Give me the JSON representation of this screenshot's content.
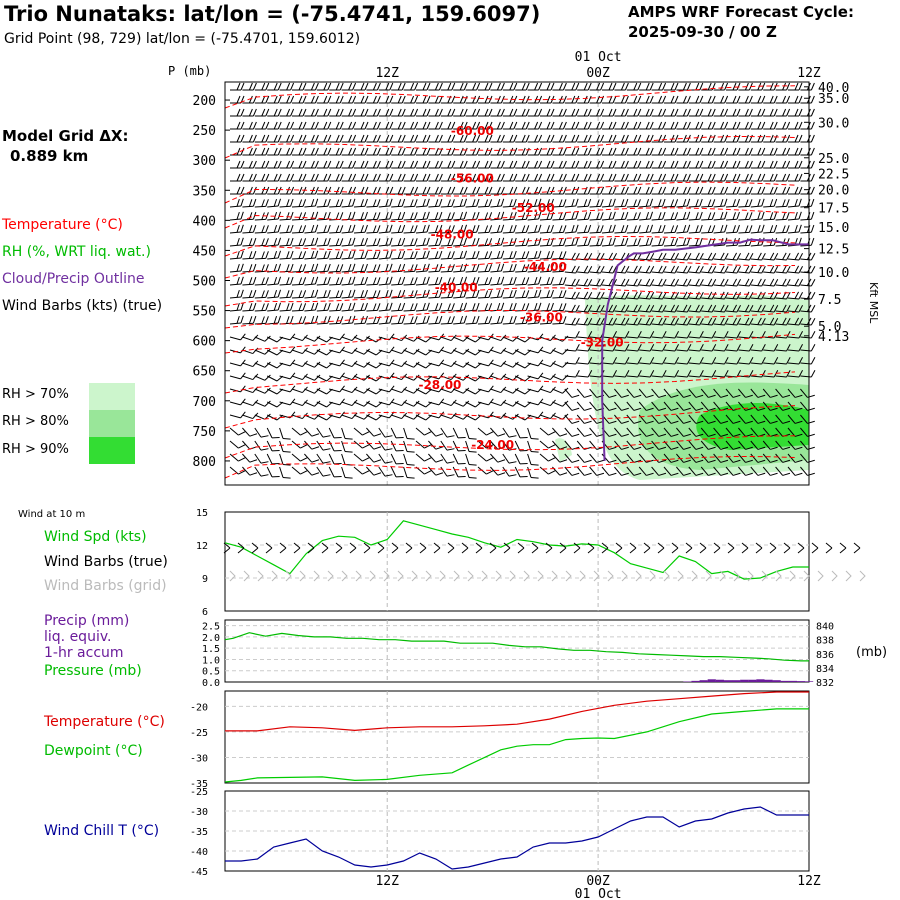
{
  "header": {
    "title": "Trio Nunataks:  lat/lon = (-75.4741, 159.6097)",
    "subtitle": "Grid Point (98, 729) lat/lon = (-75.4701, 159.6012)",
    "cycle_line1": "AMPS WRF Forecast Cycle:",
    "cycle_line2": "2025-09-30 / 00  Z",
    "model_dx_label": "Model Grid ΔX:",
    "model_dx_value": "0.889 km"
  },
  "colors": {
    "temperature": "#ff0000",
    "rh": "#00cc00",
    "cloud": "#7030a0",
    "wind": "#000000",
    "wind_grid": "#bbbbbb",
    "precip": "#6a1b9a",
    "pressure": "#00bb00",
    "windchill": "#000099",
    "rh70": "#ccf5cc",
    "rh80": "#99e699",
    "rh90": "#33dd33"
  },
  "legend": {
    "temperature": "Temperature (°C)",
    "rh": "RH (%, WRT liq. wat.)",
    "cloud": "Cloud/Precip Outline",
    "wind": "Wind Barbs (kts) (true)",
    "rh70": "RH > 70%",
    "rh80": "RH > 80%",
    "rh90": "RH > 90%",
    "wind10_title": "Wind at 10 m",
    "wind_spd": "Wind Spd (kts)",
    "wind_true": "Wind Barbs (true)",
    "wind_grid": "Wind Barbs (grid)",
    "precip1": "Precip (mm)",
    "precip2": "liq. equiv.",
    "precip3": "1-hr accum",
    "pressure": "Pressure (mb)",
    "temp2": "Temperature (°C)",
    "dewpoint": "Dewpoint (°C)",
    "windchill": "Wind Chill T (°C)",
    "mb_unit": "(mb)",
    "kft_msl": "Kft MSL"
  },
  "chart_data": [
    {
      "type": "line",
      "panel": "vertical-profile",
      "x_top_labels": [
        "12Z",
        "00Z",
        "12Z"
      ],
      "date_label": "01 Oct",
      "yaxis_title": "P (mb)",
      "ylim": [
        170,
        840
      ],
      "pressure_ticks": [
        200,
        250,
        300,
        350,
        400,
        450,
        500,
        550,
        600,
        650,
        700,
        750,
        800
      ],
      "height_ticks": [
        "40.0",
        "35.0",
        "30.0",
        "25.0",
        "22.5",
        "20.0",
        "17.5",
        "15.0",
        "12.5",
        "10.0",
        "7.5",
        "5.0",
        "4.13"
      ],
      "height_tick_pressures": [
        178,
        197,
        237,
        296,
        322,
        349,
        379,
        411,
        447,
        486,
        531,
        576,
        592
      ],
      "temperature_contour_labels": [
        {
          "text": "-60.00",
          "hour": 30.5,
          "p": 258
        },
        {
          "text": "-56.00",
          "hour": 30.5,
          "p": 337
        },
        {
          "text": "-52.00",
          "hour": 38.0,
          "p": 386
        },
        {
          "text": "-48.00",
          "hour": 28.0,
          "p": 430
        },
        {
          "text": "-44.00",
          "hour": 39.5,
          "p": 484
        },
        {
          "text": "-40.00",
          "hour": 28.5,
          "p": 518
        },
        {
          "text": "-36.00",
          "hour": 39.0,
          "p": 568
        },
        {
          "text": "-32.00",
          "hour": 46.5,
          "p": 610
        },
        {
          "text": "-28.00",
          "hour": 26.5,
          "p": 680
        },
        {
          "text": "-24.00",
          "hour": 33.0,
          "p": 780
        }
      ],
      "cloud_outline": {
        "hour": [
          46.8,
          46.5,
          46.5,
          47.2,
          48.4,
          49.8,
          50.4,
          51.5,
          52.8,
          54.0,
          55.5,
          58.0,
          60.0,
          62.0,
          63.5,
          64.8,
          66.0,
          67.5,
          69.5,
          71.0,
          72.0
        ],
        "p": [
          800,
          700,
          600,
          540,
          475,
          460,
          455,
          455,
          452,
          449,
          449,
          445,
          441,
          437,
          437,
          432,
          433,
          433,
          440,
          440,
          440
        ]
      }
    },
    {
      "type": "line",
      "panel": "wind-10m",
      "ylim": [
        6,
        15
      ],
      "yticks": [
        6,
        9,
        12,
        15
      ],
      "series": [
        {
          "name": "Wind Spd (kts)",
          "hours": [
            0,
            2,
            4,
            6,
            8,
            10,
            12,
            14,
            16,
            18,
            20,
            22,
            24,
            26,
            28,
            30,
            32,
            34,
            36,
            38,
            40,
            42,
            44,
            46,
            48,
            50,
            52,
            54,
            56,
            58,
            60,
            62,
            64,
            66,
            68,
            70,
            72
          ],
          "values": [
            12.2,
            11.8,
            11.0,
            10.2,
            9.4,
            11.2,
            12.4,
            12.8,
            12.7,
            12.0,
            12.5,
            14.2,
            13.8,
            13.4,
            13.0,
            12.7,
            12.2,
            11.8,
            12.5,
            12.3,
            12.0,
            11.9,
            12.1,
            12.0,
            11.3,
            10.3,
            9.9,
            9.5,
            11.0,
            10.5,
            9.4,
            9.6,
            8.9,
            9.0,
            9.6,
            10.0,
            10.0
          ]
        }
      ]
    },
    {
      "type": "line",
      "panel": "precip-pressure",
      "precip_yticks": [
        "0.0",
        "0.5",
        "1.0",
        "1.5",
        "2.0",
        "2.5"
      ],
      "pressure_yticks": [
        832,
        834,
        836,
        838,
        840
      ],
      "pressure_ylim": [
        832,
        840.8
      ],
      "precip_ylim": [
        0,
        2.75
      ],
      "series": [
        {
          "name": "Pressure (mb)",
          "hours": [
            0,
            1,
            3,
            5,
            7,
            9,
            11,
            13,
            15,
            17,
            19,
            21,
            23,
            25,
            27,
            29,
            31,
            33,
            35,
            37,
            39,
            41,
            43,
            45,
            47,
            49,
            51,
            53,
            55,
            57,
            59,
            61,
            63,
            65,
            67,
            69,
            71,
            72
          ],
          "values": [
            838.0,
            838.2,
            839.0,
            838.5,
            838.9,
            838.6,
            838.4,
            838.4,
            838.2,
            838.2,
            838.0,
            838.0,
            837.8,
            837.8,
            837.8,
            837.5,
            837.5,
            837.5,
            837.2,
            837.0,
            837.0,
            836.7,
            836.5,
            836.5,
            836.3,
            836.2,
            836.0,
            835.9,
            835.8,
            835.7,
            835.6,
            835.6,
            835.5,
            835.4,
            835.3,
            835.1,
            835.0,
            835.0
          ]
        },
        {
          "name": "Precip (mm)",
          "hours": [
            57,
            58,
            59,
            60,
            61,
            62,
            63,
            64,
            65,
            66,
            67,
            68,
            69,
            70,
            71,
            72
          ],
          "values": [
            0.02,
            0.05,
            0.08,
            0.12,
            0.1,
            0.08,
            0.08,
            0.1,
            0.1,
            0.12,
            0.1,
            0.08,
            0.05,
            0.05,
            0.04,
            0.03
          ]
        }
      ]
    },
    {
      "type": "line",
      "panel": "temperature-dewpoint",
      "ylim": [
        -35,
        -17
      ],
      "yticks": [
        -35,
        -30,
        -25,
        -20
      ],
      "series": [
        {
          "name": "Temperature (°C)",
          "hours": [
            0,
            4,
            8,
            12,
            16,
            20,
            24,
            28,
            32,
            36,
            40,
            44,
            48,
            52,
            56,
            60,
            64,
            68,
            72
          ],
          "values": [
            -24.8,
            -24.8,
            -24.0,
            -24.2,
            -24.7,
            -24.2,
            -24.0,
            -24.0,
            -23.8,
            -23.5,
            -22.5,
            -21.0,
            -19.8,
            -19.0,
            -18.5,
            -18.0,
            -17.5,
            -17.2,
            -17.2
          ]
        },
        {
          "name": "Dewpoint (°C)",
          "hours": [
            0,
            2,
            4,
            8,
            12,
            16,
            20,
            24,
            28,
            30,
            32,
            34,
            36,
            38,
            40,
            42,
            44,
            46,
            48,
            52,
            56,
            60,
            64,
            68,
            72
          ],
          "values": [
            -34.8,
            -34.5,
            -34.0,
            -33.9,
            -33.8,
            -34.5,
            -34.3,
            -33.5,
            -33.0,
            -31.5,
            -30.0,
            -28.5,
            -27.8,
            -27.5,
            -27.5,
            -26.5,
            -26.3,
            -26.2,
            -26.3,
            -25.0,
            -23.0,
            -21.5,
            -21.0,
            -20.5,
            -20.5
          ]
        }
      ]
    },
    {
      "type": "line",
      "panel": "wind-chill",
      "ylim": [
        -45,
        -25
      ],
      "yticks": [
        -45,
        -40,
        -35,
        -30,
        -25
      ],
      "series": [
        {
          "name": "Wind Chill T (°C)",
          "hours": [
            0,
            2,
            4,
            6,
            8,
            10,
            12,
            14,
            16,
            18,
            20,
            22,
            24,
            26,
            28,
            30,
            32,
            34,
            36,
            38,
            40,
            42,
            44,
            46,
            48,
            50,
            52,
            54,
            56,
            58,
            60,
            62,
            64,
            66,
            68,
            70,
            72
          ],
          "values": [
            -42.5,
            -42.5,
            -42.0,
            -39.0,
            -38.0,
            -37.0,
            -40.0,
            -41.5,
            -43.5,
            -44.0,
            -43.5,
            -42.5,
            -40.5,
            -42.0,
            -44.5,
            -44.0,
            -43.0,
            -42.0,
            -41.5,
            -39.0,
            -38.0,
            -38.0,
            -37.5,
            -36.5,
            -34.5,
            -32.5,
            -31.5,
            -31.5,
            -34.0,
            -32.5,
            -32.0,
            -30.5,
            -29.5,
            -29.0,
            -31.0,
            -31.0,
            -31.0
          ]
        }
      ]
    }
  ],
  "x_axis": {
    "hours_range": [
      0,
      72
    ],
    "labels": [
      "12Z",
      "00Z",
      "12Z"
    ],
    "label_hours": [
      20,
      46,
      72
    ],
    "date_label": "01 Oct"
  }
}
